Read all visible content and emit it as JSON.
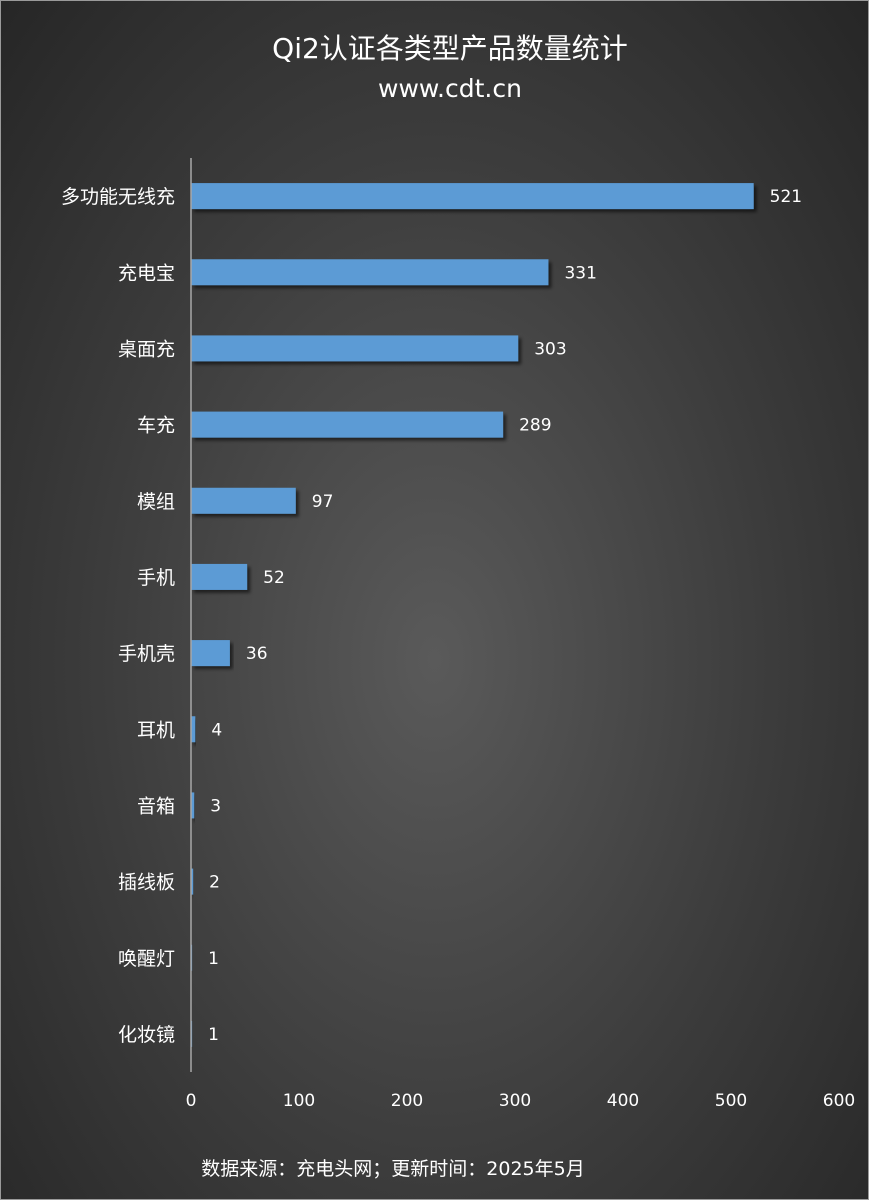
{
  "chart_data": {
    "type": "bar",
    "orientation": "horizontal",
    "title": "Qi2认证各类型产品数量统计",
    "subtitle": "www.cdt.cn",
    "categories": [
      "多功能无线充",
      "充电宝",
      "桌面充",
      "车充",
      "模组",
      "手机",
      "手机壳",
      "耳机",
      "音箱",
      "插线板",
      "唤醒灯",
      "化妆镜"
    ],
    "values": [
      521,
      331,
      303,
      289,
      97,
      52,
      36,
      4,
      3,
      2,
      1,
      1
    ],
    "xlim": [
      0,
      600
    ],
    "xticks": [
      0,
      100,
      200,
      300,
      400,
      500,
      600
    ],
    "xlabel": "",
    "ylabel": "",
    "grid": false,
    "legend": "none",
    "bar_color": "#5b9bd5",
    "footer": "数据来源：充电头网；更新时间：2025年5月"
  }
}
